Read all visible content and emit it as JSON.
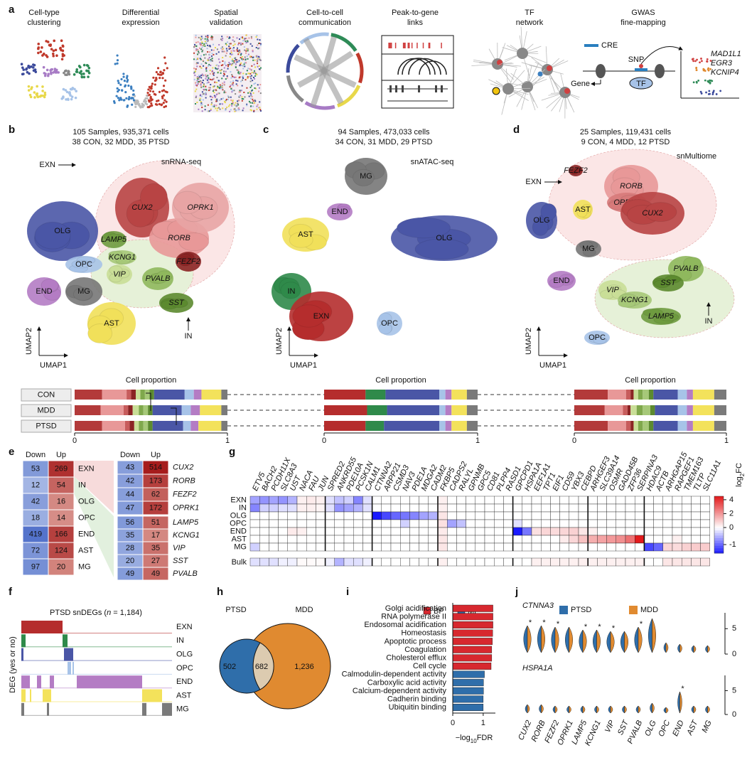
{
  "panel_a": {
    "letter": "a",
    "items": [
      [
        "Cell-type",
        "clustering"
      ],
      [
        "Differential",
        "expression"
      ],
      [
        "Spatial",
        "validation"
      ],
      [
        "Cell-to-cell",
        "communication"
      ],
      [
        "Peak-to-gene",
        "links"
      ],
      [
        "TF",
        "network"
      ],
      [
        "GWAS",
        "fine-mapping"
      ]
    ],
    "gwas_texts": {
      "cre": "CRE",
      "snp": "SNP",
      "gene": "Gene",
      "tf": "TF",
      "genes": [
        "MAD1L1",
        "EGR3",
        "KCNIP4"
      ]
    }
  },
  "umaps": [
    {
      "letter": "b",
      "title": [
        "105 Samples, 935,371 cells",
        "38 CON, 32 MDD, 35 PTSD"
      ],
      "assay": "snRNA-seq",
      "xlabel": "UMAP1",
      "ylabel": "UMAP2",
      "arrow_labels": [
        "EXN",
        "IN"
      ],
      "clusters": [
        {
          "label": "OLG",
          "color": "#4a56a6",
          "italic": false
        },
        {
          "label": "OPC",
          "color": "#a7c3e8",
          "italic": false
        },
        {
          "label": "END",
          "color": "#b47cc4",
          "italic": false
        },
        {
          "label": "MG",
          "color": "#777777",
          "italic": false
        },
        {
          "label": "AST",
          "color": "#f1e05a",
          "italic": false
        },
        {
          "label": "CUX2",
          "color": "#b84444",
          "italic": true
        },
        {
          "label": "RORB",
          "color": "#e89898",
          "italic": true
        },
        {
          "label": "OPRK1",
          "color": "#e8a4a4",
          "italic": true
        },
        {
          "label": "FEZF2",
          "color": "#8b2424",
          "italic": true
        },
        {
          "label": "LAMP5",
          "color": "#6e9b3f",
          "italic": true
        },
        {
          "label": "KCNG1",
          "color": "#a6c878",
          "italic": true
        },
        {
          "label": "VIP",
          "color": "#c9de97",
          "italic": true
        },
        {
          "label": "PVALB",
          "color": "#8fb85d",
          "italic": true
        },
        {
          "label": "SST",
          "color": "#5c8a2f",
          "italic": true
        }
      ]
    },
    {
      "letter": "c",
      "title": [
        "94 Samples, 473,033 cells",
        "34 CON, 31 MDD, 29 PTSD"
      ],
      "assay": "snATAC-seq",
      "xlabel": "UMAP1",
      "ylabel": "UMAP2",
      "arrow_labels": [],
      "clusters": [
        {
          "label": "MG",
          "color": "#777777",
          "italic": false
        },
        {
          "label": "END",
          "color": "#b47cc4",
          "italic": false
        },
        {
          "label": "AST",
          "color": "#f1e05a",
          "italic": false
        },
        {
          "label": "OLG",
          "color": "#4a56a6",
          "italic": false
        },
        {
          "label": "IN",
          "color": "#2f8a4a",
          "italic": false
        },
        {
          "label": "EXN",
          "color": "#b52d2d",
          "italic": false
        },
        {
          "label": "OPC",
          "color": "#a7c3e8",
          "italic": false
        }
      ]
    },
    {
      "letter": "d",
      "title": [
        "25 Samples, 119,431 cells",
        "9 CON, 4 MDD, 12 PTSD"
      ],
      "assay": "snMultiome",
      "xlabel": "UMAP1",
      "ylabel": "UMAP2",
      "arrow_labels": [
        "EXN",
        "IN"
      ],
      "clusters": [
        {
          "label": "FEZF2",
          "color": "#8b2424",
          "italic": true
        },
        {
          "label": "RORB",
          "color": "#e89898",
          "italic": true
        },
        {
          "label": "OPRK1",
          "color": "#d77a7a",
          "italic": true
        },
        {
          "label": "CUX2",
          "color": "#b84444",
          "italic": true
        },
        {
          "label": "AST",
          "color": "#f1e05a",
          "italic": false
        },
        {
          "label": "OLG",
          "color": "#4a56a6",
          "italic": false
        },
        {
          "label": "MG",
          "color": "#777777",
          "italic": false
        },
        {
          "label": "END",
          "color": "#b47cc4",
          "italic": false
        },
        {
          "label": "PVALB",
          "color": "#8fb85d",
          "italic": true
        },
        {
          "label": "SST",
          "color": "#5c8a2f",
          "italic": true
        },
        {
          "label": "VIP",
          "color": "#c9de97",
          "italic": true
        },
        {
          "label": "KCNG1",
          "color": "#a6c878",
          "italic": true
        },
        {
          "label": "LAMP5",
          "color": "#6e9b3f",
          "italic": true
        },
        {
          "label": "OPC",
          "color": "#a7c3e8",
          "italic": false
        }
      ]
    }
  ],
  "proportions": {
    "title": "Cell proportion",
    "rows": [
      "CON",
      "MDD",
      "PTSD"
    ],
    "xlim": [
      0,
      1
    ],
    "xticks": [
      0,
      1
    ],
    "panels": [
      {
        "colors": [
          "#b33a3a",
          "#e89898",
          "#c75c5c",
          "#8b2424",
          "#c9de97",
          "#7fa84c",
          "#a6c878",
          "#5c8a2f",
          "#4a56a6",
          "#a7c3e8",
          "#b47cc4",
          "#f3e25b",
          "#7a7a7a"
        ],
        "values": [
          [
            0.18,
            0.16,
            0.03,
            0.03,
            0.03,
            0.03,
            0.03,
            0.03,
            0.2,
            0.06,
            0.05,
            0.13,
            0.04
          ],
          [
            0.17,
            0.15,
            0.03,
            0.03,
            0.04,
            0.03,
            0.03,
            0.03,
            0.19,
            0.06,
            0.06,
            0.14,
            0.04
          ],
          [
            0.18,
            0.15,
            0.03,
            0.03,
            0.03,
            0.03,
            0.03,
            0.03,
            0.2,
            0.05,
            0.05,
            0.15,
            0.04
          ]
        ]
      },
      {
        "colors": [
          "#b52d2d",
          "#2f8a4a",
          "#4a56a6",
          "#a7c3e8",
          "#b47cc4",
          "#f3e25b",
          "#7a7a7a"
        ],
        "values": [
          [
            0.27,
            0.13,
            0.35,
            0.04,
            0.04,
            0.1,
            0.07
          ],
          [
            0.28,
            0.13,
            0.34,
            0.04,
            0.04,
            0.1,
            0.07
          ],
          [
            0.27,
            0.12,
            0.36,
            0.04,
            0.04,
            0.1,
            0.07
          ]
        ]
      },
      {
        "colors": [
          "#b33a3a",
          "#e89898",
          "#c75c5c",
          "#8b2424",
          "#c9de97",
          "#7fa84c",
          "#a6c878",
          "#5c8a2f",
          "#4a56a6",
          "#a7c3e8",
          "#b47cc4",
          "#f3e25b",
          "#7a7a7a"
        ],
        "values": [
          [
            0.22,
            0.12,
            0.03,
            0.02,
            0.03,
            0.03,
            0.04,
            0.03,
            0.16,
            0.06,
            0.04,
            0.14,
            0.08
          ],
          [
            0.2,
            0.12,
            0.03,
            0.02,
            0.04,
            0.04,
            0.05,
            0.03,
            0.15,
            0.06,
            0.04,
            0.14,
            0.08
          ],
          [
            0.22,
            0.12,
            0.03,
            0.02,
            0.03,
            0.03,
            0.04,
            0.03,
            0.16,
            0.06,
            0.04,
            0.14,
            0.08
          ]
        ]
      }
    ]
  },
  "panel_e": {
    "letter": "e",
    "header": [
      "Down",
      "Up"
    ],
    "left": [
      {
        "label": "EXN",
        "down": 53,
        "up": 269
      },
      {
        "label": "IN",
        "down": 12,
        "up": 54
      },
      {
        "label": "OLG",
        "down": 42,
        "up": 16
      },
      {
        "label": "OPC",
        "down": 18,
        "up": 14
      },
      {
        "label": "END",
        "down": 419,
        "up": 166
      },
      {
        "label": "AST",
        "down": 72,
        "up": 124
      },
      {
        "label": "MG",
        "down": 97,
        "up": 20
      }
    ],
    "right_top": [
      {
        "label": "CUX2",
        "down": 43,
        "up": 514
      },
      {
        "label": "RORB",
        "down": 42,
        "up": 173
      },
      {
        "label": "FEZF2",
        "down": 44,
        "up": 62
      },
      {
        "label": "OPRK1",
        "down": 47,
        "up": 172
      }
    ],
    "right_bottom": [
      {
        "label": "LAMP5",
        "down": 56,
        "up": 51
      },
      {
        "label": "KCNG1",
        "down": 35,
        "up": 17
      },
      {
        "label": "VIP",
        "down": 28,
        "up": 35
      },
      {
        "label": "SST",
        "down": 20,
        "up": 27
      },
      {
        "label": "PVALB",
        "down": 49,
        "up": 49
      }
    ]
  },
  "panel_g": {
    "letter": "g",
    "genes": [
      "ETV5",
      "BACH2",
      "PCDH11X",
      "SLC8A3",
      "UST",
      "NACA",
      "FAU",
      "JUN",
      "SPRED2",
      "ANKRD55",
      "PDE10A",
      "PCSK1N",
      "CALM1",
      "CTNNA2",
      "ARPP21",
      "CSMD3",
      "NAV3",
      "PDE1A",
      "MDGA2",
      "CADM2",
      "FKBP5",
      "CADPS2",
      "RALYL",
      "GPNMB",
      "GPC5",
      "CD81",
      "PLPP4",
      "RASD1",
      "GPCPD1",
      "HSPA1A",
      "EEF1A1",
      "TPT1",
      "EIF1",
      "CD59",
      "YBX3",
      "CEBPD",
      "ARHGEF3",
      "SLC39A14",
      "OSMR",
      "GADD45B",
      "ZFP36",
      "SERPINA3",
      "HDAC9",
      "ACTB",
      "ARHGAP15",
      "RAPGEF1",
      "TMEM163",
      "TLTP",
      "SLC11A1"
    ],
    "rows": [
      "EXN",
      "IN",
      "OLG",
      "OPC",
      "END",
      "AST",
      "MG"
    ],
    "bulk_label": "Bulk",
    "values": [
      [
        -0.6,
        -0.7,
        -0.6,
        -0.7,
        -0.5,
        0.3,
        0.4,
        0.3,
        -0.2,
        -0.4,
        -0.3,
        -0.8,
        -0.2,
        0,
        0,
        0,
        0,
        0,
        0,
        0,
        0.3,
        0,
        0,
        0,
        0,
        0,
        0,
        0,
        0,
        0,
        0,
        0,
        0,
        0,
        0,
        0,
        0,
        0,
        0,
        0,
        0,
        0,
        0,
        0,
        0,
        0,
        0,
        0,
        0
      ],
      [
        -0.8,
        -0.3,
        -0.3,
        -0.2,
        -0.2,
        0.3,
        0.3,
        0.2,
        -0.2,
        -0.7,
        -0.6,
        -0.5,
        -0.2,
        0,
        0,
        0,
        0,
        0,
        0,
        0,
        0.3,
        0,
        0,
        0,
        0,
        0,
        0,
        0,
        0,
        0,
        0,
        0,
        0,
        0,
        0,
        0,
        0,
        0,
        0,
        0,
        0,
        0,
        0,
        0,
        0,
        0,
        0,
        0,
        0
      ],
      [
        0,
        0,
        0,
        0,
        0,
        0,
        0,
        0,
        0,
        0,
        0,
        0,
        0,
        -1.5,
        -1.2,
        -1.0,
        -0.9,
        -0.8,
        -0.6,
        -0.5,
        0.5,
        0,
        0,
        0,
        0,
        0,
        0,
        0,
        0,
        0,
        0,
        0,
        0,
        0,
        0,
        0,
        0,
        0,
        0,
        0,
        0,
        0,
        0,
        0,
        0,
        0,
        0,
        0,
        0
      ],
      [
        0,
        0,
        0,
        0,
        0,
        0,
        0,
        0,
        0,
        0,
        0,
        0,
        0,
        0,
        0,
        0,
        -0.3,
        0,
        0,
        0,
        0.6,
        -0.6,
        -0.4,
        0,
        0,
        0,
        0,
        0,
        -0.2,
        0,
        0,
        0,
        0,
        0,
        0,
        0,
        0,
        0,
        0,
        0,
        0,
        0,
        0,
        0,
        0,
        0,
        0,
        0,
        0
      ],
      [
        0,
        0,
        0,
        0,
        0.4,
        0.3,
        0,
        0,
        0,
        0,
        0,
        0,
        0,
        0,
        0,
        0,
        0,
        0,
        0,
        0,
        0.4,
        0,
        0,
        0,
        0,
        0,
        0,
        0,
        -1.5,
        -0.9,
        0.6,
        0.8,
        0.7,
        0.8,
        0.9,
        0.5,
        0.3,
        0,
        0,
        0,
        0,
        0,
        0,
        0,
        0,
        0,
        0,
        0,
        0
      ],
      [
        0,
        0,
        0,
        0,
        0,
        0,
        0,
        0,
        0,
        0,
        0,
        0,
        0,
        0,
        0,
        0,
        0,
        0,
        0,
        0,
        0.5,
        0,
        0,
        0,
        0,
        0,
        0,
        0,
        0,
        0,
        0,
        0,
        0,
        0.4,
        0.8,
        1.2,
        1.6,
        1.8,
        2.0,
        2.2,
        2.8,
        4.5,
        0,
        0,
        0,
        0.3,
        0,
        0,
        0
      ],
      [
        -0.3,
        0,
        0,
        0,
        0,
        0,
        0,
        0,
        0,
        0,
        0,
        0,
        0,
        0,
        0,
        0,
        0,
        0,
        0,
        0,
        0.5,
        0,
        0,
        0,
        0,
        0,
        0,
        0,
        0,
        0,
        0,
        0,
        0,
        0,
        0,
        0,
        0,
        0,
        0,
        0,
        0,
        0,
        -1.2,
        -1.0,
        0.8,
        0.7,
        0.9,
        1.0,
        1.0
      ]
    ],
    "bulk": [
      -0.2,
      -0.2,
      -0.2,
      -0.1,
      -0.1,
      0.1,
      0.1,
      0.1,
      -0.1,
      -0.5,
      -0.2,
      -0.2,
      -0.1,
      0,
      0,
      0,
      0,
      0,
      0,
      0,
      0.3,
      0,
      0,
      0,
      0,
      0,
      0,
      0,
      0,
      0,
      0.3,
      0.3,
      0.3,
      0.3,
      0.3,
      0.3,
      0.3,
      0.3,
      0.3,
      0.3,
      0.3,
      0.3,
      0,
      0,
      0.5,
      0.5,
      0.5,
      0.5,
      0.5
    ],
    "colorbar": {
      "label": [
        "log",
        "2",
        "FC"
      ],
      "ticks": [
        4,
        2,
        0,
        -1
      ],
      "clim": [
        -1.5,
        4.5
      ],
      "colors": [
        "#1a1aff",
        "#ffffff",
        "#e31a1c"
      ]
    }
  },
  "panel_f": {
    "letter": "f",
    "title": [
      "PTSD snDEGs (",
      "n",
      " = 1,184)"
    ],
    "ylabel": "DEG (yes or no)",
    "rows": [
      {
        "label": "EXN",
        "color": "#b52d2d"
      },
      {
        "label": "IN",
        "color": "#2f8a4a"
      },
      {
        "label": "OLG",
        "color": "#4a56a6"
      },
      {
        "label": "OPC",
        "color": "#a7c3e8"
      },
      {
        "label": "END",
        "color": "#b47cc4"
      },
      {
        "label": "AST",
        "color": "#f3e25b"
      },
      {
        "label": "MG",
        "color": "#7a7a7a"
      }
    ]
  },
  "panel_h": {
    "letter": "h",
    "sets": [
      "PTSD",
      "MDD"
    ],
    "colors": [
      "#2f6eaa",
      "#e08a30"
    ],
    "overlap_color": "#dccbb0",
    "counts": [
      502,
      682,
      {
        "value": 1236,
        "label": "1,236"
      }
    ]
  },
  "panel_i": {
    "letter": "i",
    "legend": [
      {
        "name": "BP",
        "color": "#d7282f"
      },
      {
        "name": "MF",
        "color": "#2f6eaa"
      }
    ],
    "terms": [
      {
        "label": "Golgi acidification",
        "value": 1.32,
        "category": "BP"
      },
      {
        "label": "RNA polymerase II",
        "value": 1.32,
        "category": "BP"
      },
      {
        "label": "Endosomal acidification",
        "value": 1.32,
        "category": "BP"
      },
      {
        "label": "Homeostasis",
        "value": 1.31,
        "category": "BP"
      },
      {
        "label": "Apoptotic process",
        "value": 1.3,
        "category": "BP"
      },
      {
        "label": "Coagulation",
        "value": 1.28,
        "category": "BP"
      },
      {
        "label": "Cholesterol efflux",
        "value": 1.28,
        "category": "BP"
      },
      {
        "label": "Cell cycle",
        "value": 1.26,
        "category": "BP"
      },
      {
        "label": "Calmodulin-dependent activity",
        "value": 1.04,
        "category": "MF"
      },
      {
        "label": "Carboxylic acid activity",
        "value": 1.01,
        "category": "MF"
      },
      {
        "label": "Calcium-dependent activity",
        "value": 1.01,
        "category": "MF"
      },
      {
        "label": "Cadherin binding",
        "value": 1.0,
        "category": "MF"
      },
      {
        "label": "Ubiquitin binding",
        "value": 1.0,
        "category": "MF"
      }
    ],
    "xlim": [
      0,
      1.4
    ],
    "xticks": [
      0,
      1
    ],
    "xlabel": [
      "−log",
      "10",
      "FDR"
    ]
  },
  "panel_j": {
    "letter": "j",
    "legend": [
      {
        "name": "PTSD",
        "color": "#2f6eaa"
      },
      {
        "name": "MDD",
        "color": "#e08a30"
      }
    ],
    "categories": [
      "CUX2",
      "RORB",
      "FEZF2",
      "OPRK1",
      "LAMP5",
      "KCNG1",
      "VIP",
      "SST",
      "PVALB",
      "OLG",
      "OPC",
      "END",
      "AST",
      "MG"
    ],
    "genes": [
      {
        "name": "CTNNA3",
        "ylim": [
          0,
          7
        ],
        "yticks": [
          0,
          5
        ],
        "stars": [
          "*",
          "*",
          "*",
          null,
          "*",
          "*",
          "*",
          null,
          "*",
          null,
          null,
          null,
          null,
          null
        ]
      },
      {
        "name": "HSPA1A",
        "ylim": [
          0,
          7
        ],
        "yticks": [
          0,
          5
        ],
        "stars": [
          null,
          null,
          null,
          null,
          null,
          null,
          null,
          null,
          null,
          null,
          null,
          "*",
          null,
          null
        ]
      }
    ]
  }
}
